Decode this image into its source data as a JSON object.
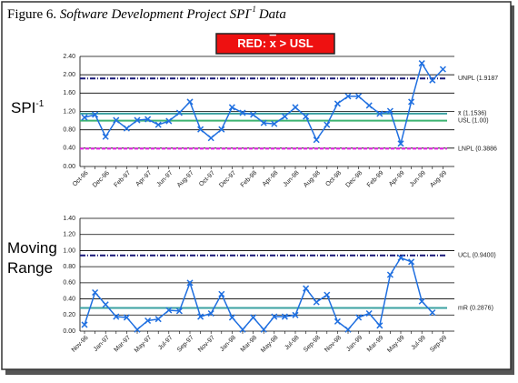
{
  "header": {
    "prefix": "Figure 6.",
    "main": "Software Development Project SPI",
    "sup": "-1",
    "end": "Data"
  },
  "note": {
    "prefix": "RED:",
    "symbol": "x",
    "suffix": "> USL"
  },
  "chart_data": [
    {
      "type": "line",
      "ylabel": "SPI",
      "ylabel_sup": "-1",
      "categories": [
        "Oct-96",
        null,
        "Dec-96",
        null,
        "Feb-97",
        null,
        "Apr-97",
        null,
        "Jun-97",
        null,
        "Aug-97",
        null,
        "Oct-97",
        null,
        "Dec-97",
        null,
        "Feb-98",
        null,
        "Apr-98",
        null,
        "Jun-98",
        null,
        "Aug-98",
        null,
        "Oct-98",
        null,
        "Dec-98",
        null,
        "Feb-99",
        null,
        "Apr-99",
        null,
        "Jun-99",
        null,
        "Aug-99"
      ],
      "series": [
        {
          "color": "#1f6fe0",
          "values": [
            1.07,
            1.13,
            0.65,
            1.01,
            0.83,
            1.01,
            1.03,
            0.91,
            0.99,
            1.17,
            1.41,
            0.81,
            0.62,
            0.81,
            1.29,
            1.17,
            1.13,
            0.95,
            0.93,
            1.09,
            1.29,
            1.09,
            0.58,
            0.91,
            1.37,
            1.53,
            1.53,
            1.33,
            1.15,
            1.21,
            0.5,
            1.41,
            2.25,
            1.88,
            2.12
          ]
        }
      ],
      "ylim": [
        0,
        2.4
      ],
      "yticks": [
        {
          "value": 0,
          "label": "0.00"
        },
        {
          "value": 0.4,
          "label": "0.40"
        },
        {
          "value": 0.8,
          "label": "0.80"
        },
        {
          "value": 1.2,
          "label": "1.20"
        },
        {
          "value": 1.6,
          "label": "1.60"
        },
        {
          "value": 2,
          "label": "2.00"
        },
        {
          "value": 2.4,
          "label": "2.40"
        }
      ],
      "grid": true,
      "reference_lines": [
        {
          "label": "UNPL (1.9187",
          "value": 1.9187,
          "color": "#1a1a7a",
          "style": "dashdot"
        },
        {
          "label": "x̄ (1.1536)",
          "value": 1.1536,
          "color": "#3aa0a0",
          "style": "solid"
        },
        {
          "label": "USL (1.00)",
          "value": 1,
          "color": "#3cb371",
          "style": "solid"
        },
        {
          "label": "LNPL (0.3886",
          "value": 0.3886,
          "color": "#e020e0",
          "style": "dashed"
        }
      ]
    },
    {
      "type": "line",
      "ylabel": "Moving Range",
      "categories": [
        "Nov-96",
        null,
        "Jan-97",
        null,
        "Mar-97",
        null,
        "May-97",
        null,
        "Jul-97",
        null,
        "Sep-97",
        null,
        "Nov-97",
        null,
        "Jan-98",
        null,
        "Mar-98",
        null,
        "May-98",
        null,
        "Jul-98",
        null,
        "Sep-98",
        null,
        "Nov-98",
        null,
        "Jan-99",
        null,
        "Mar-99",
        null,
        "May-99",
        null,
        "Jul-99",
        null,
        "Sep-99"
      ],
      "series": [
        {
          "color": "#1f6fe0",
          "values": [
            0.08,
            0.48,
            0.33,
            0.18,
            0.17,
            0.02,
            0.13,
            0.15,
            0.26,
            0.25,
            0.6,
            0.18,
            0.22,
            0.46,
            0.17,
            0.02,
            0.17,
            0.02,
            0.18,
            0.18,
            0.2,
            0.53,
            0.36,
            0.45,
            0.12,
            0.02,
            0.17,
            0.22,
            0.07,
            0.7,
            0.91,
            0.86,
            0.37,
            0.23,
            null
          ]
        }
      ],
      "ylim": [
        0,
        1.4
      ],
      "yticks": [
        {
          "value": 0,
          "label": "0.00"
        },
        {
          "value": 0.2,
          "label": "0.20"
        },
        {
          "value": 0.4,
          "label": "0.40"
        },
        {
          "value": 0.6,
          "label": "0.60"
        },
        {
          "value": 0.8,
          "label": "0.80"
        },
        {
          "value": 1,
          "label": "1.00"
        },
        {
          "value": 1.2,
          "label": "1.20"
        },
        {
          "value": 1.4,
          "label": "1.40"
        }
      ],
      "grid": true,
      "reference_lines": [
        {
          "label": "UCL (0.9400)",
          "value": 0.94,
          "color": "#1a1a7a",
          "style": "dashdot"
        },
        {
          "label": "mR (0.2876)",
          "value": 0.2876,
          "color": "#3aa0a0",
          "style": "solid"
        }
      ]
    }
  ]
}
